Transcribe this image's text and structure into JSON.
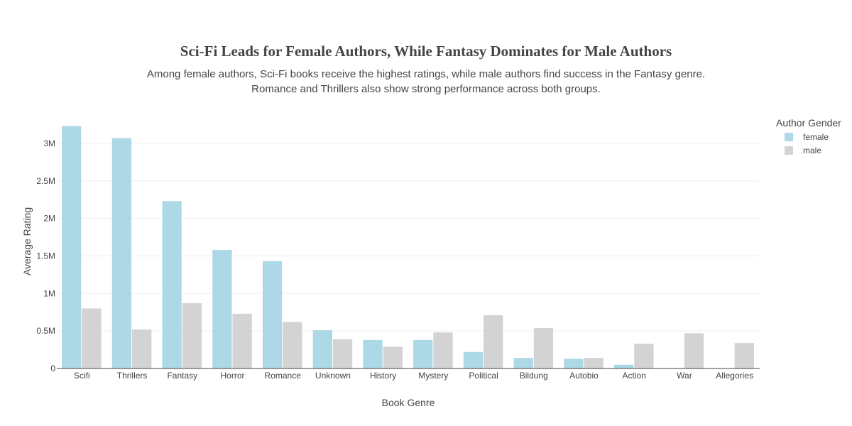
{
  "chart_data": {
    "type": "bar",
    "title": "Sci-Fi Leads for Female Authors, While Fantasy Dominates for Male Authors",
    "subtitle": [
      "Among female authors, Sci-Fi books receive the highest ratings, while male authors find success in the Fantasy genre.",
      "Romance and Thrillers also show strong performance across both groups."
    ],
    "xlabel": "Book Genre",
    "ylabel": "Average Rating",
    "ylim": [
      0,
      3300000
    ],
    "yticks": [
      0,
      500000,
      1000000,
      1500000,
      2000000,
      2500000,
      3000000
    ],
    "ytick_labels": [
      "0",
      "0.5M",
      "1M",
      "1.5M",
      "2M",
      "2.5M",
      "3M"
    ],
    "categories": [
      "Scifi",
      "Thrillers",
      "Fantasy",
      "Horror",
      "Romance",
      "Unknown",
      "History",
      "Mystery",
      "Political",
      "Bildung",
      "Autobio",
      "Action",
      "War",
      "Allegories"
    ],
    "legend_title": "Author Gender",
    "legend_position": "top-right",
    "series": [
      {
        "name": "female",
        "color": "#add8e6",
        "values": [
          3230000,
          3070000,
          2230000,
          1580000,
          1430000,
          510000,
          380000,
          380000,
          220000,
          140000,
          130000,
          50000,
          0,
          5000
        ]
      },
      {
        "name": "male",
        "color": "#d3d3d3",
        "values": [
          800000,
          520000,
          870000,
          730000,
          620000,
          390000,
          290000,
          480000,
          710000,
          540000,
          140000,
          330000,
          470000,
          340000
        ]
      }
    ]
  }
}
